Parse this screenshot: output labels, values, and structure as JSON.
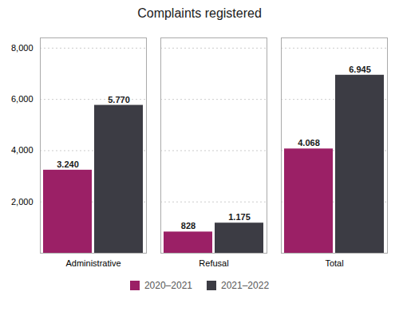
{
  "chart_data": {
    "type": "bar",
    "title": "Complaints registered",
    "categories": [
      "Administrative",
      "Refusal",
      "Total"
    ],
    "series": [
      {
        "name": "2020–2021",
        "color": "#9B2066",
        "values": [
          3240,
          828,
          4068
        ],
        "value_labels": [
          "3.240",
          "828",
          "4.068"
        ]
      },
      {
        "name": "2021–2022",
        "color": "#3C3C44",
        "values": [
          5770,
          1175,
          6945
        ],
        "value_labels": [
          "5.770",
          "1.175",
          "6.945"
        ]
      }
    ],
    "ylim": [
      0,
      8400
    ],
    "yticks": [
      {
        "value": 2000,
        "label": "2,000"
      },
      {
        "value": 4000,
        "label": "4,000"
      },
      {
        "value": 6000,
        "label": "6,000"
      },
      {
        "value": 8000,
        "label": "8,000"
      }
    ],
    "grid": true,
    "data_labels": true,
    "legend": "bottom"
  }
}
